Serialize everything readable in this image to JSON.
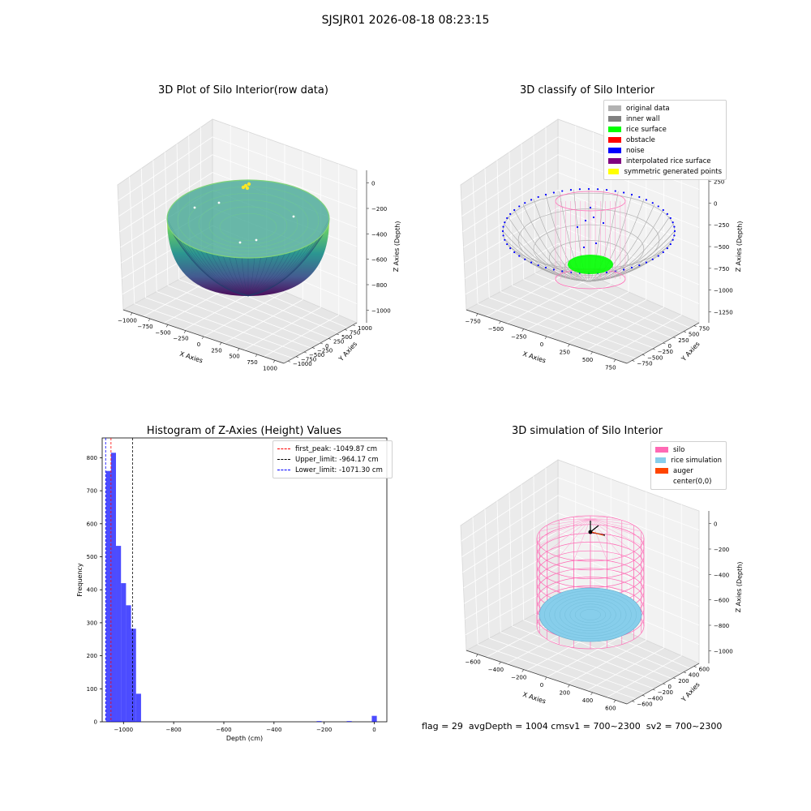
{
  "suptitle": "SJSJR01 2026-08-18 08:23:15",
  "footer": {
    "flag": "flag = 29",
    "avg_depth": "avgDepth = 1004 cm",
    "sv1": "sv1 = 700~2300",
    "sv2": "sv2 = 700~2300"
  },
  "chart_data": [
    {
      "type": "scatter",
      "subtype": "3d-surface-scatter",
      "title": "3D Plot of Silo Interior(row data)",
      "xlabel": "X Axies",
      "ylabel": "Y Axies",
      "zlabel": "Z Axies (Depth)",
      "x_ticks": [
        "−1000",
        "−750",
        "−500",
        "−250",
        "0",
        "250",
        "500",
        "750",
        "1000"
      ],
      "y_ticks": [
        "−1000",
        "−750",
        "−500",
        "−250",
        "0",
        "250",
        "500",
        "750",
        "1000"
      ],
      "z_ticks": [
        "0",
        "−200",
        "−400",
        "−600",
        "−800",
        "−1000"
      ],
      "xlim": [
        -1000,
        1000
      ],
      "ylim": [
        -1000,
        1000
      ],
      "zlim": [
        -1100,
        0
      ],
      "colormap": [
        "#440154",
        "#3b528b",
        "#21918c",
        "#5ec962",
        "#fde725"
      ],
      "shape": "hemispherical bowl of points",
      "grid": true
    },
    {
      "type": "scatter",
      "subtype": "3d-classified-scatter",
      "title": "3D classify of Silo Interior",
      "xlabel": "X Axies",
      "ylabel": "Y Axies",
      "zlabel": "Z Axies (Depth)",
      "x_ticks": [
        "−750",
        "−500",
        "−250",
        "0",
        "250",
        "500",
        "750"
      ],
      "y_ticks": [
        "−750",
        "−500",
        "−250",
        "0",
        "250",
        "500",
        "750"
      ],
      "z_ticks": [
        "250",
        "0",
        "−250",
        "−500",
        "−750",
        "−1000",
        "−1250"
      ],
      "zlim": [
        -1300,
        300
      ],
      "legend": [
        {
          "label": "original data",
          "color": "#b2b2b2"
        },
        {
          "label": "inner wall",
          "color": "#808080"
        },
        {
          "label": "rice surface",
          "color": "#00ff00"
        },
        {
          "label": "obstacle",
          "color": "#ff0000"
        },
        {
          "label": "noise",
          "color": "#0000ff"
        },
        {
          "label": "interpolated rice surface",
          "color": "#800080"
        },
        {
          "label": "symmetric generated points",
          "color": "#ffff00"
        }
      ],
      "legend_position": "upper right",
      "grid": true
    },
    {
      "type": "bar",
      "subtype": "histogram",
      "title": "Histogram of Z-Axies (Height) Values",
      "xlabel": "Depth (cm)",
      "ylabel": "Frequency",
      "xlim": [
        -1085,
        50
      ],
      "ylim": [
        0,
        860
      ],
      "x_ticks": [
        -1000,
        -800,
        -600,
        -400,
        -200,
        0
      ],
      "y_ticks": [
        0,
        100,
        200,
        300,
        400,
        500,
        600,
        700,
        800
      ],
      "bar_color": "#0000ff",
      "bins": [
        {
          "x0": -1070,
          "x1": -1050,
          "value": 760
        },
        {
          "x0": -1050,
          "x1": -1030,
          "value": 815
        },
        {
          "x0": -1030,
          "x1": -1010,
          "value": 533
        },
        {
          "x0": -1010,
          "x1": -990,
          "value": 420
        },
        {
          "x0": -990,
          "x1": -970,
          "value": 353
        },
        {
          "x0": -970,
          "x1": -950,
          "value": 282
        },
        {
          "x0": -950,
          "x1": -930,
          "value": 85
        },
        {
          "x0": -230,
          "x1": -210,
          "value": 2
        },
        {
          "x0": -110,
          "x1": -90,
          "value": 2
        },
        {
          "x0": -10,
          "x1": 10,
          "value": 18
        }
      ],
      "vlines": [
        {
          "label": "first_peak: -1049.87 cm",
          "x": -1049.87,
          "color": "#ff0000"
        },
        {
          "label": "Upper_limit: -964.17 cm",
          "x": -964.17,
          "color": "#000000"
        },
        {
          "label": "Lower_limit: -1071.30 cm",
          "x": -1071.3,
          "color": "#0000ff"
        }
      ],
      "legend_position": "upper right",
      "grid": false
    },
    {
      "type": "scatter",
      "subtype": "3d-simulation",
      "title": "3D simulation of Silo Interior",
      "xlabel": "X Axies",
      "ylabel": "Y Axies",
      "zlabel": "Z Axies (Depth)",
      "x_ticks": [
        "−600",
        "−400",
        "−200",
        "0",
        "200",
        "400",
        "600"
      ],
      "y_ticks": [
        "−600",
        "−400",
        "−200",
        "0",
        "200",
        "400",
        "600"
      ],
      "z_ticks": [
        "0",
        "−200",
        "−400",
        "−600",
        "−800",
        "−1000"
      ],
      "zlim": [
        -1100,
        100
      ],
      "legend": [
        {
          "label": "silo",
          "color": "#ff69b4"
        },
        {
          "label": "rice simulation",
          "color": "#87ceeb"
        },
        {
          "label": "auger",
          "color": "#ff4500"
        },
        {
          "label": "center(0,0)",
          "color": ""
        }
      ],
      "legend_position": "upper right",
      "grid": true
    }
  ]
}
